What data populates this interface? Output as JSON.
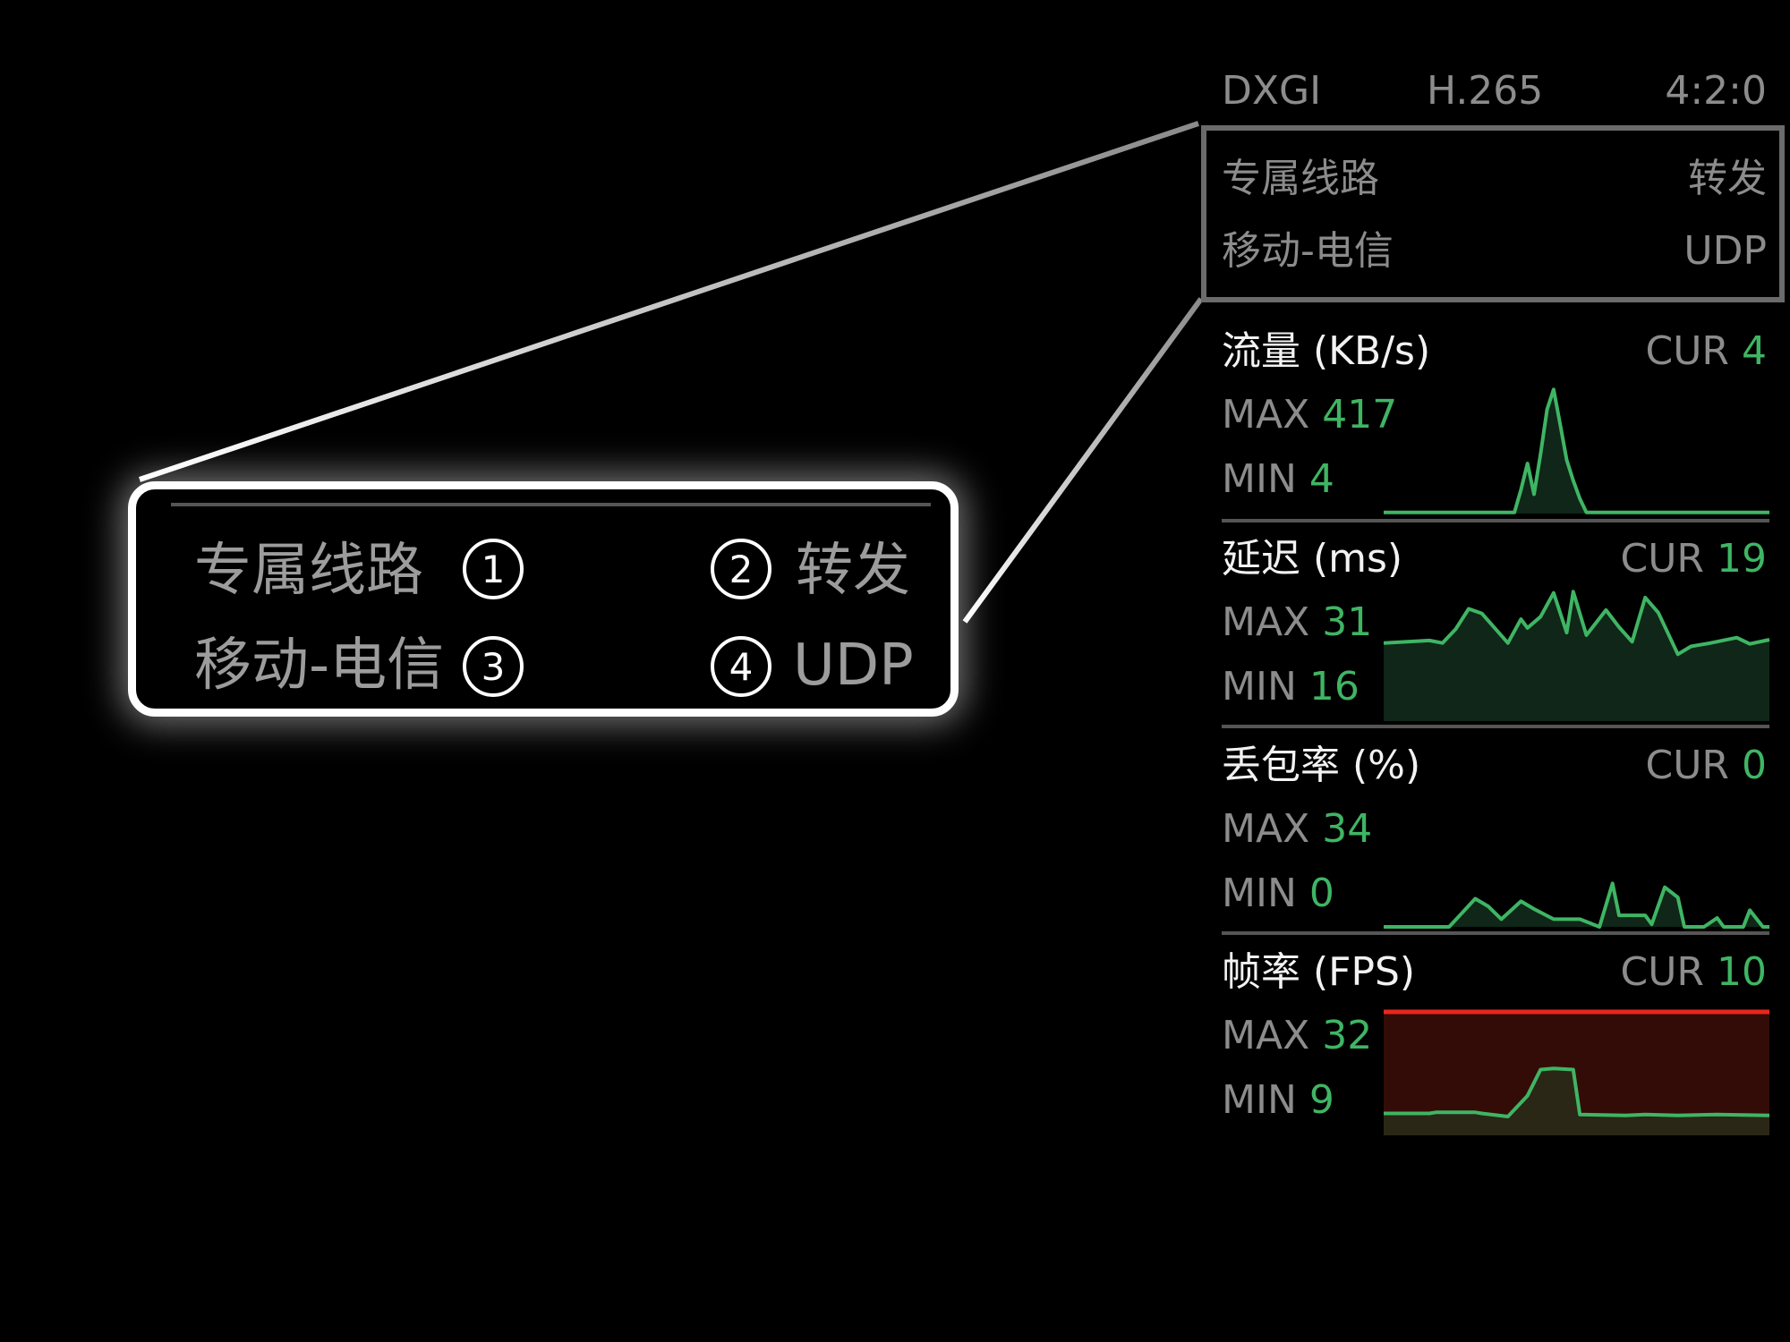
{
  "header": {
    "capture": "DXGI",
    "codec": "H.265",
    "chroma": "4:2:0"
  },
  "network": {
    "line_type": "专属线路",
    "relay_mode": "转发",
    "carrier": "移动-电信",
    "protocol": "UDP"
  },
  "callout": {
    "line_type": "专属线路",
    "relay_mode": "转发",
    "carrier": "移动-电信",
    "protocol": "UDP",
    "markers": [
      "1",
      "2",
      "3",
      "4"
    ]
  },
  "labels": {
    "cur": "CUR",
    "max": "MAX",
    "min": "MIN"
  },
  "colors": {
    "accent_green": "#3fb564",
    "fill_green": "#0f2618",
    "alert_red": "#e8261e",
    "alert_bg": "#330c07",
    "fps_fill": "#2a2716",
    "label_gray": "#8c8c8c",
    "box_border": "#6b6b6b"
  },
  "chart_data": [
    {
      "type": "area",
      "title": "流量 (KB/s)",
      "cur": "4",
      "max": "417",
      "min": "4",
      "ylim": [
        0,
        460
      ],
      "x": [
        0,
        20,
        21,
        22,
        23,
        24,
        25,
        26,
        27,
        28,
        29,
        30,
        31,
        59
      ],
      "y": [
        4,
        4,
        80,
        168,
        65,
        200,
        350,
        417,
        300,
        180,
        111,
        50,
        4,
        4
      ]
    },
    {
      "type": "area",
      "title": "延迟 (ms)",
      "cur": "19",
      "max": "31",
      "min": "16",
      "ylim": [
        0,
        36
      ],
      "x": [
        0,
        7,
        9,
        11,
        13,
        15,
        19,
        21,
        22,
        24,
        26,
        28,
        29,
        31,
        34,
        36,
        38,
        40,
        42,
        45,
        47,
        50,
        54,
        56,
        59
      ],
      "y": [
        18.7,
        19.3,
        18.7,
        22,
        26.9,
        25.8,
        18.7,
        24.4,
        22.3,
        25,
        30.7,
        21.2,
        31,
        20.6,
        26.6,
        22.5,
        19,
        29.6,
        26,
        16,
        17.9,
        18.7,
        20,
        18.5,
        19.5
      ]
    },
    {
      "type": "area",
      "title": "丢包率 (%)",
      "cur": "0",
      "max": "34",
      "min": "0",
      "ylim": [
        0,
        100
      ],
      "x": [
        0,
        10,
        12,
        14,
        16,
        18,
        21,
        23,
        26,
        30,
        32,
        33,
        35,
        36,
        40,
        41,
        43,
        45,
        46,
        49,
        51,
        52,
        55,
        56,
        58,
        59
      ],
      "y": [
        0,
        0,
        11,
        22,
        16,
        6,
        20,
        14,
        6,
        6,
        2,
        0,
        34,
        9,
        9,
        2,
        31,
        23,
        0,
        0,
        7,
        0,
        0,
        13,
        0,
        0
      ]
    },
    {
      "type": "area",
      "title": "帧率 (FPS)",
      "cur": "10",
      "max": "32",
      "min": "9",
      "ylim": [
        0,
        60
      ],
      "alert": true,
      "x": [
        0,
        7,
        8,
        14,
        15,
        19,
        22,
        24,
        26,
        29,
        30,
        37,
        40,
        45,
        51,
        59
      ],
      "y": [
        10.5,
        10.5,
        11,
        11,
        10.5,
        9,
        19,
        31.5,
        32,
        31.5,
        10,
        9.5,
        10,
        9.5,
        10,
        9.5
      ]
    }
  ]
}
